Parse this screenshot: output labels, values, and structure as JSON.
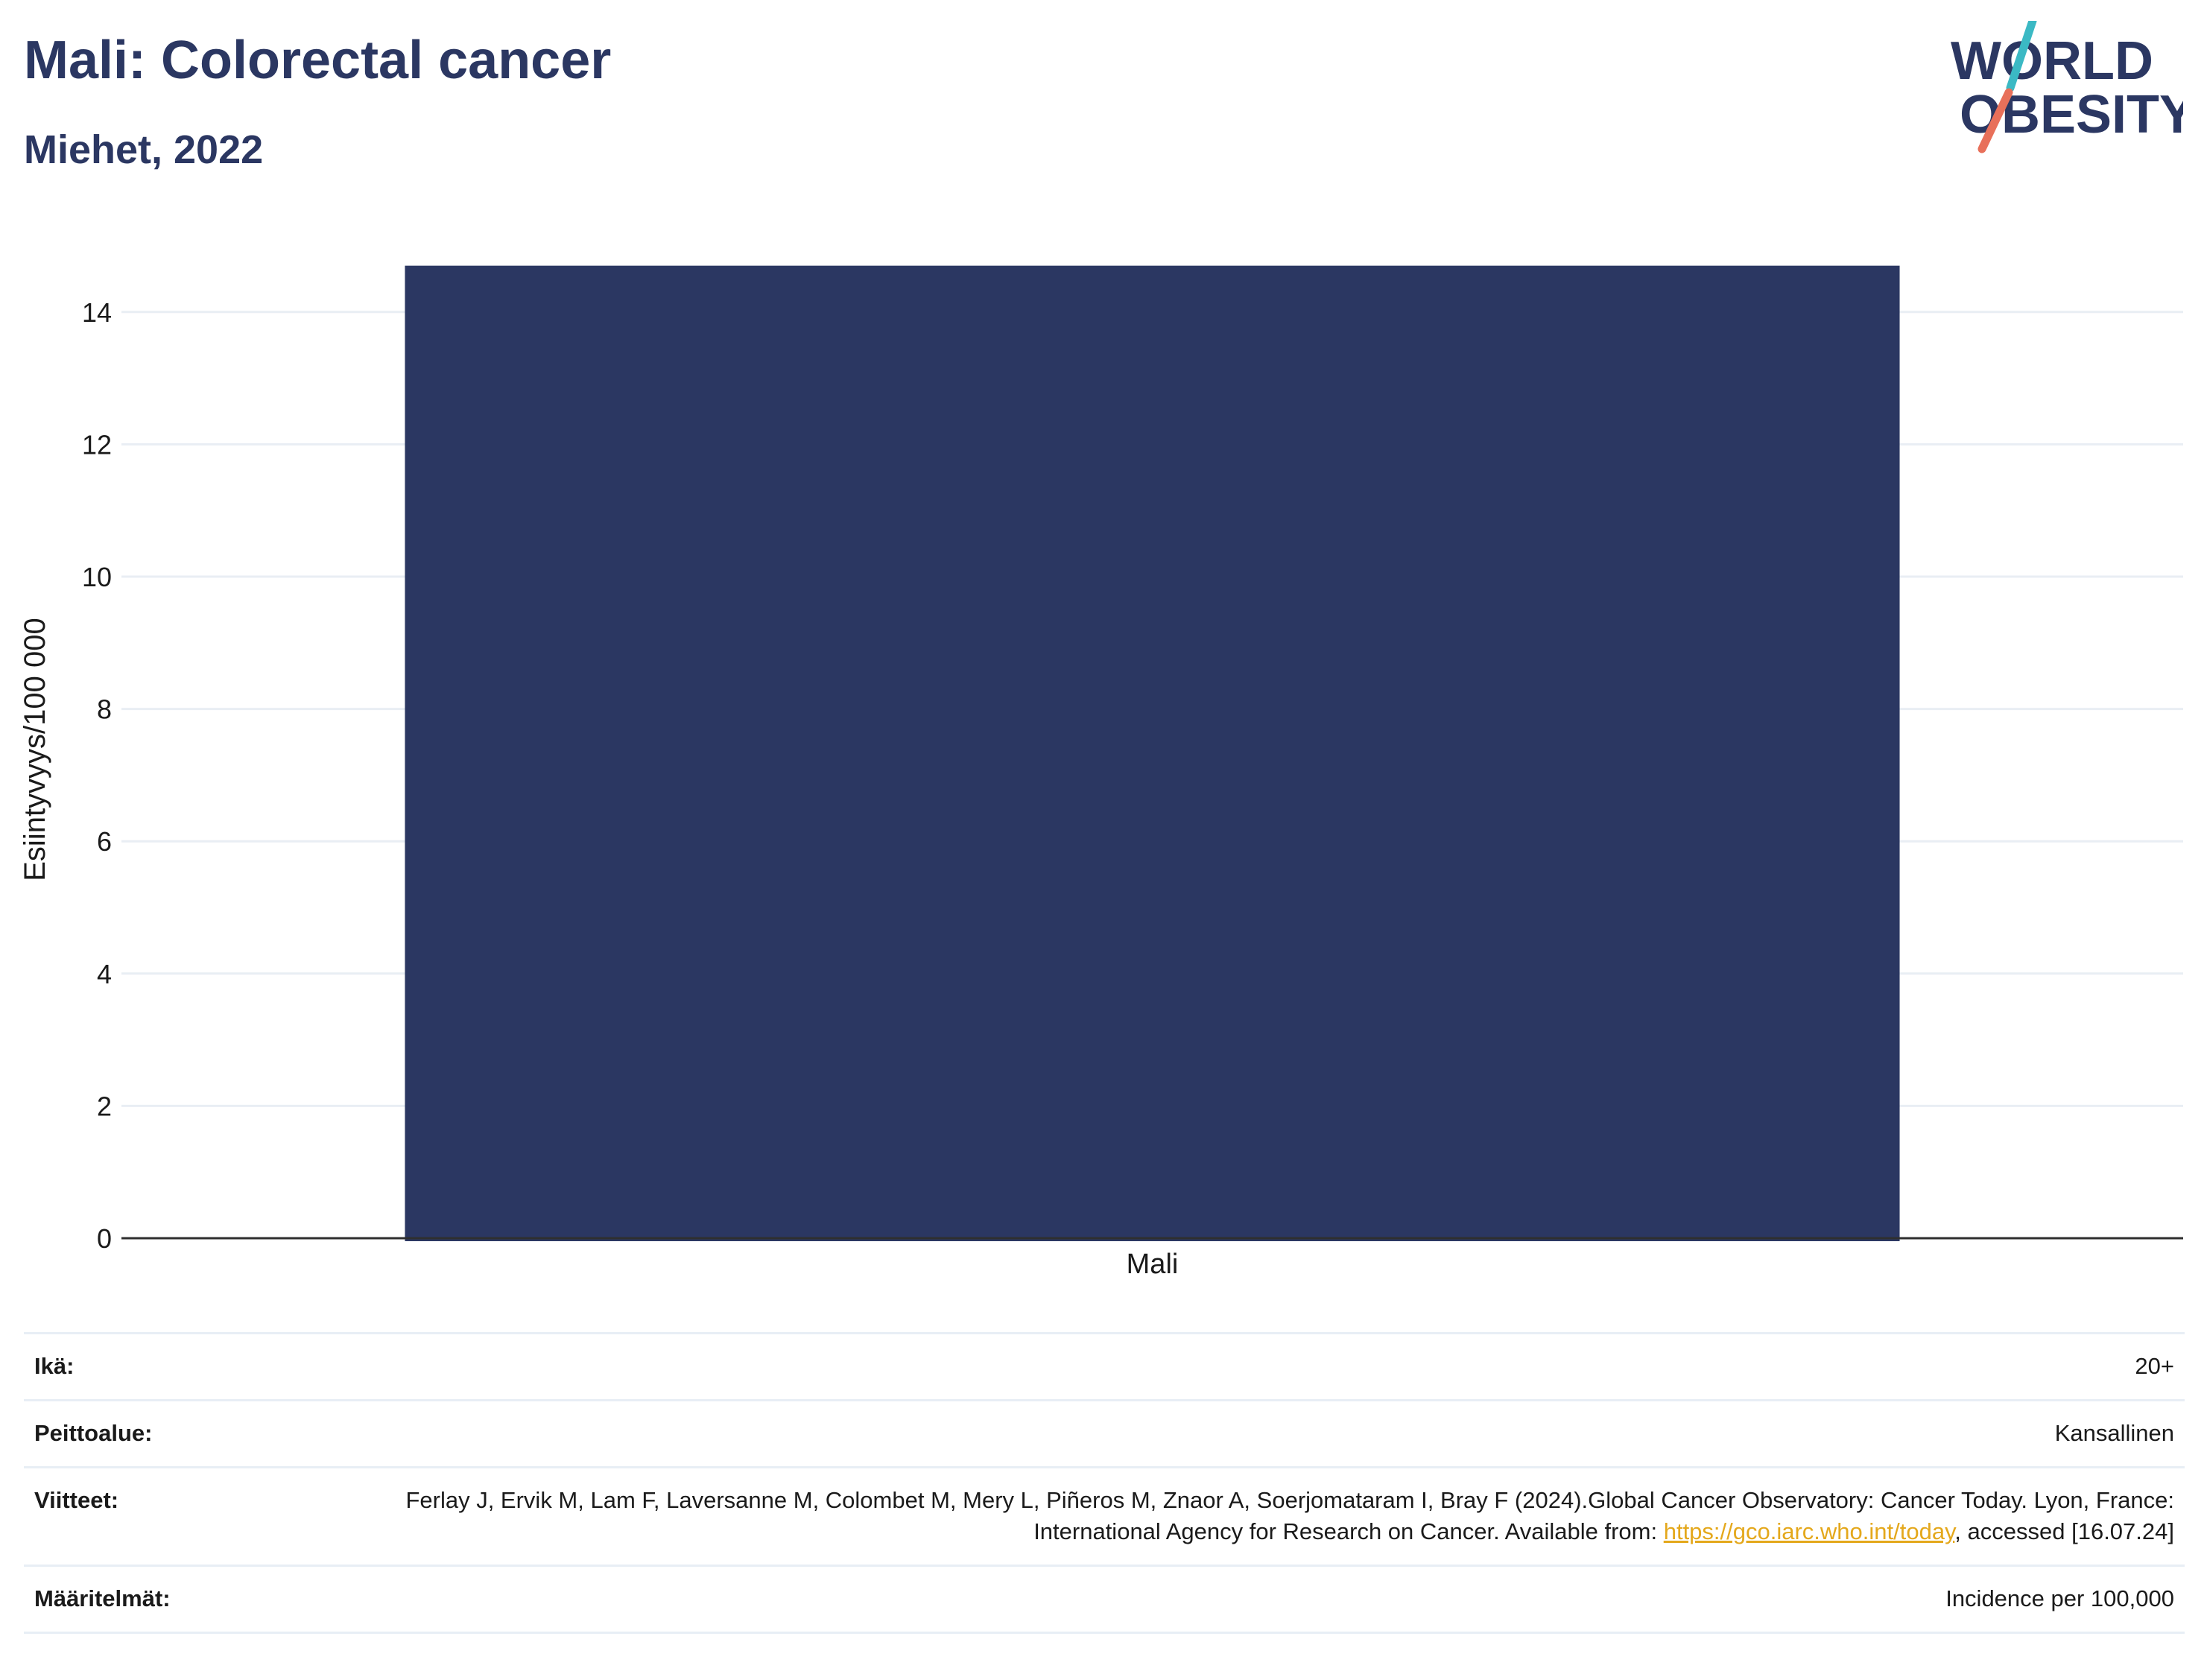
{
  "header": {
    "title": "Mali: Colorectal cancer",
    "subtitle": "Miehet, 2022",
    "logo_line1": "WORLD",
    "logo_line2": "OBESITY"
  },
  "chart_data": {
    "type": "bar",
    "categories": [
      "Mali"
    ],
    "values": [
      14.7
    ],
    "ylabel": "Esiintyvyys/100 000",
    "ylim": [
      0,
      15
    ],
    "yticks": [
      0,
      2,
      4,
      6,
      8,
      10,
      12,
      14
    ],
    "bar_color": "#2b3762",
    "grid": true
  },
  "info": {
    "age_label": "Ikä:",
    "age_value": "20+",
    "coverage_label": "Peittoalue:",
    "coverage_value": "Kansallinen",
    "refs_label": "Viitteet:",
    "refs_text_1": "Ferlay J, Ervik M, Lam F, Laversanne M, Colombet M, Mery L, Piñeros M, Znaor A, Soerjomataram I, Bray F (2024).Global Cancer Observatory: Cancer Today. Lyon, France: International Agency for Research on Cancer. Available from: ",
    "refs_link": "https://gco.iarc.who.int/today",
    "refs_text_2": ", accessed [16.07.24]",
    "defs_label": "Määritelmät:",
    "defs_value": "Incidence per 100,000"
  },
  "colors": {
    "brand_navy": "#2b3762",
    "logo_teal": "#3bb9c4",
    "logo_coral": "#e8705a",
    "link": "#e4a81c"
  }
}
